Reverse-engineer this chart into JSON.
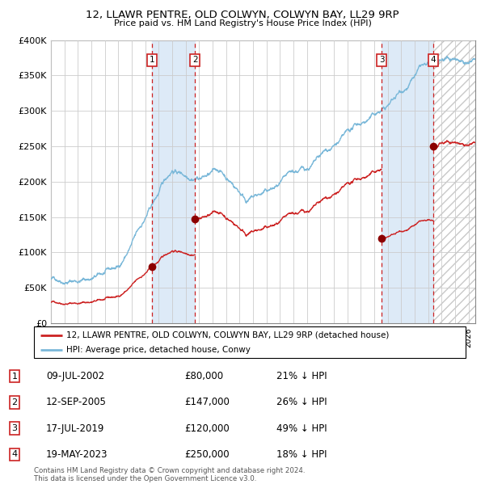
{
  "title1": "12, LLAWR PENTRE, OLD COLWYN, COLWYN BAY, LL29 9RP",
  "title2": "Price paid vs. HM Land Registry's House Price Index (HPI)",
  "ylim": [
    0,
    400000
  ],
  "xlim_start": 1995.0,
  "xlim_end": 2026.5,
  "yticks": [
    0,
    50000,
    100000,
    150000,
    200000,
    250000,
    300000,
    350000,
    400000
  ],
  "ytick_labels": [
    "£0",
    "£50K",
    "£100K",
    "£150K",
    "£200K",
    "£250K",
    "£300K",
    "£350K",
    "£400K"
  ],
  "grid_color": "#cccccc",
  "hpi_line_color": "#7ab8d9",
  "sale_line_color": "#cc2222",
  "sale_dot_color": "#8b0000",
  "dashed_line_color": "#cc2222",
  "shade_color": "#ddeaf7",
  "transactions": [
    {
      "num": 1,
      "date_dec": 2002.52,
      "price": 80000,
      "label": "09-JUL-2002",
      "price_str": "£80,000",
      "pct": "21% ↓ HPI"
    },
    {
      "num": 2,
      "date_dec": 2005.7,
      "price": 147000,
      "label": "12-SEP-2005",
      "price_str": "£147,000",
      "pct": "26% ↓ HPI"
    },
    {
      "num": 3,
      "date_dec": 2019.54,
      "price": 120000,
      "label": "17-JUL-2019",
      "price_str": "£120,000",
      "pct": "49% ↓ HPI"
    },
    {
      "num": 4,
      "date_dec": 2023.38,
      "price": 250000,
      "label": "19-MAY-2023",
      "price_str": "£250,000",
      "pct": "18% ↓ HPI"
    }
  ],
  "legend_entries": [
    "12, LLAWR PENTRE, OLD COLWYN, COLWYN BAY, LL29 9RP (detached house)",
    "HPI: Average price, detached house, Conwy"
  ],
  "footer1": "Contains HM Land Registry data © Crown copyright and database right 2024.",
  "footer2": "This data is licensed under the Open Government Licence v3.0."
}
